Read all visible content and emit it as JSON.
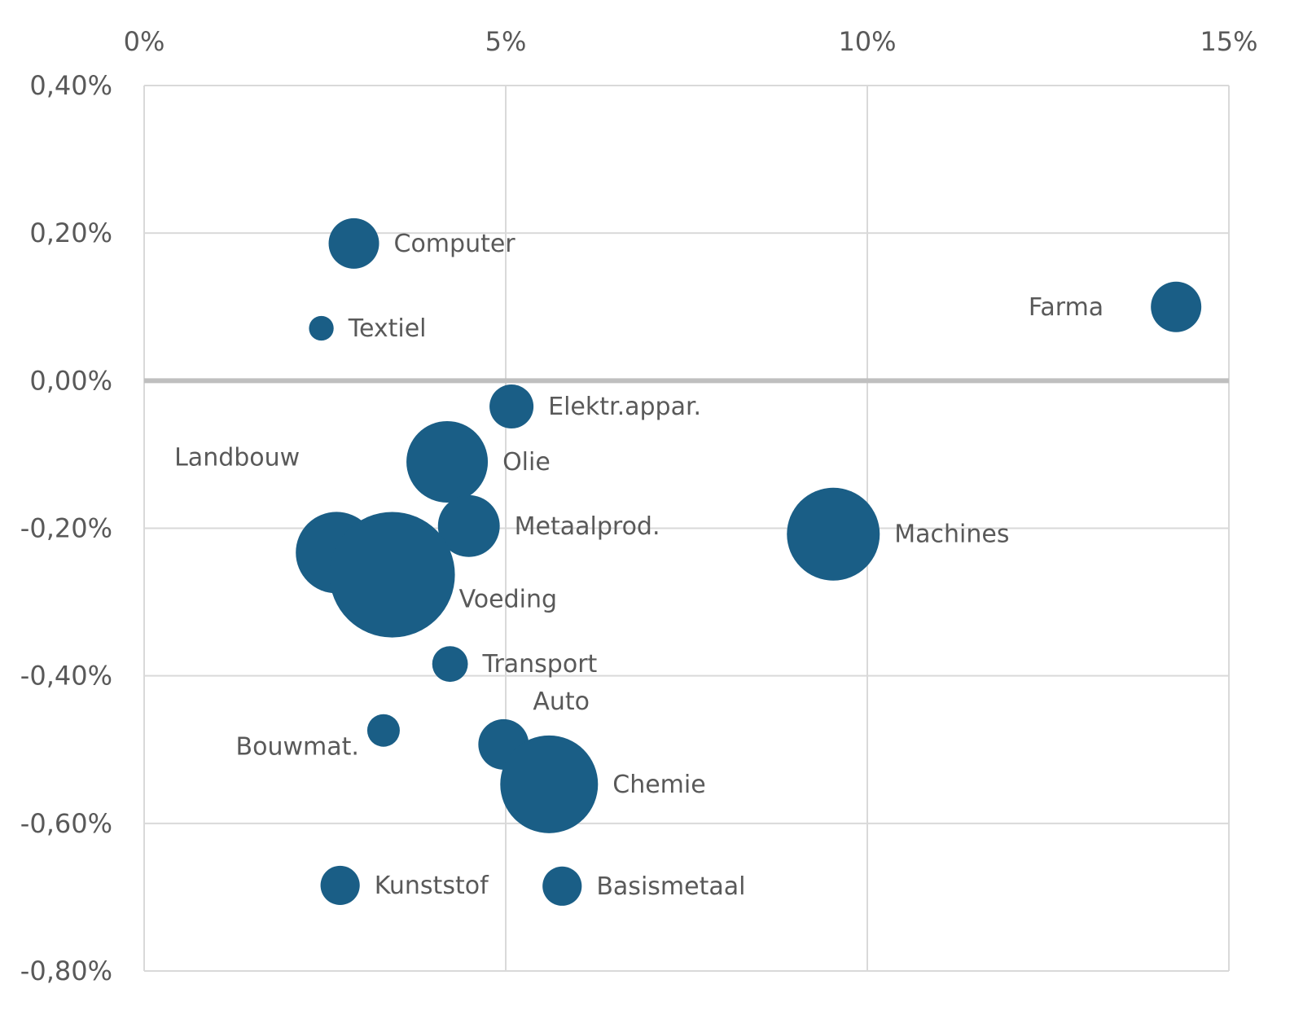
{
  "chart_data": {
    "type": "scatter",
    "subtype": "bubble",
    "title": "",
    "xlabel": "",
    "ylabel": "",
    "xlim": [
      0,
      15
    ],
    "ylim": [
      -0.8,
      0.4
    ],
    "x_ticks": [
      0,
      5,
      10,
      15
    ],
    "x_tick_labels": [
      "0%",
      "5%",
      "10%",
      "15%"
    ],
    "x_axis_position": "top",
    "y_ticks": [
      0.4,
      0.2,
      0.0,
      -0.2,
      -0.4,
      -0.6,
      -0.8
    ],
    "y_tick_labels": [
      "0,40%",
      "0,20%",
      "0,00%",
      "-0,20%",
      "-0,40%",
      "-0,60%",
      "-0,80%"
    ],
    "grid": true,
    "bubble_color": "#1a5e86",
    "zero_line_color": "#bfbfbf",
    "size_unit": "relative bubble area",
    "points": [
      {
        "name": "Computer",
        "x": 2.9,
        "y": 0.186,
        "size": 9.6,
        "label_side": "right"
      },
      {
        "name": "Textiel",
        "x": 2.45,
        "y": 0.071,
        "size": 2.3,
        "label_side": "right"
      },
      {
        "name": "Farma",
        "x": 14.27,
        "y": 0.1,
        "size": 9.6,
        "label_side": "left"
      },
      {
        "name": "Elektr.appar.",
        "x": 5.08,
        "y": -0.035,
        "size": 7.3,
        "label_side": "right"
      },
      {
        "name": "Olie",
        "x": 4.19,
        "y": -0.11,
        "size": 25,
        "label_side": "right"
      },
      {
        "name": "Metaalprod.",
        "x": 4.49,
        "y": -0.197,
        "size": 14.4,
        "label_side": "right"
      },
      {
        "name": "Landbouw",
        "x": 2.66,
        "y": -0.233,
        "size": 25,
        "label_side": "upper-left"
      },
      {
        "name": "Voeding",
        "x": 3.43,
        "y": -0.263,
        "size": 59.3,
        "label_side": "lower-right"
      },
      {
        "name": "Machines",
        "x": 9.53,
        "y": -0.208,
        "size": 32.5,
        "label_side": "right"
      },
      {
        "name": "Transport",
        "x": 4.23,
        "y": -0.384,
        "size": 4.8,
        "label_side": "right"
      },
      {
        "name": "Bouwmat.",
        "x": 3.31,
        "y": -0.474,
        "size": 4.0,
        "label_side": "lower-left"
      },
      {
        "name": "Auto",
        "x": 4.97,
        "y": -0.493,
        "size": 9.6,
        "label_side": "upper-right"
      },
      {
        "name": "Chemie",
        "x": 5.6,
        "y": -0.547,
        "size": 36,
        "label_side": "right"
      },
      {
        "name": "Kunststof",
        "x": 2.71,
        "y": -0.684,
        "size": 5.8,
        "label_side": "right"
      },
      {
        "name": "Basismetaal",
        "x": 5.78,
        "y": -0.685,
        "size": 5.8,
        "label_side": "right"
      }
    ]
  }
}
